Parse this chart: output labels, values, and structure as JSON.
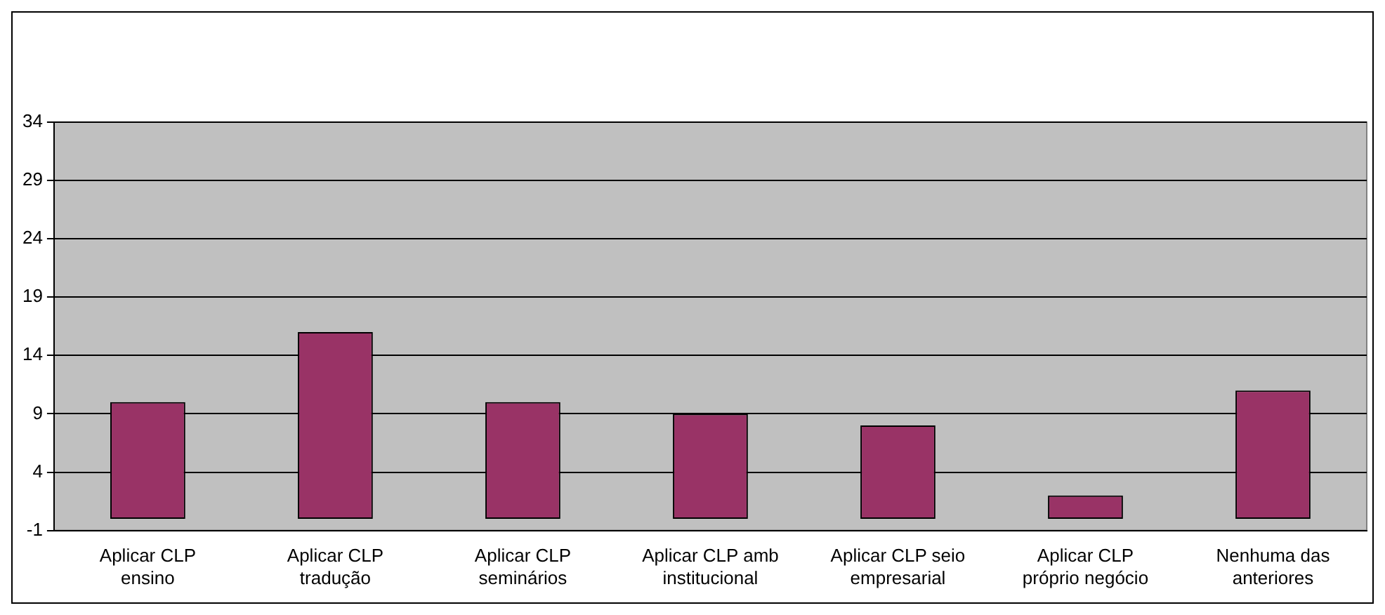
{
  "chart_data": {
    "type": "bar",
    "categories": [
      "Aplicar CLP ensino",
      "Aplicar CLP tradução",
      "Aplicar CLP seminários",
      "Aplicar CLP amb institucional",
      "Aplicar CLP seio empresarial",
      "Aplicar CLP próprio negócio",
      "Nenhuma das anteriores"
    ],
    "values": [
      10,
      16,
      10,
      9,
      8,
      2,
      11
    ],
    "color": "#993366",
    "ylim": [
      -1,
      34
    ],
    "yticks": [
      -1,
      4,
      9,
      14,
      19,
      24,
      29,
      34
    ],
    "grid": "y",
    "legend": false
  }
}
